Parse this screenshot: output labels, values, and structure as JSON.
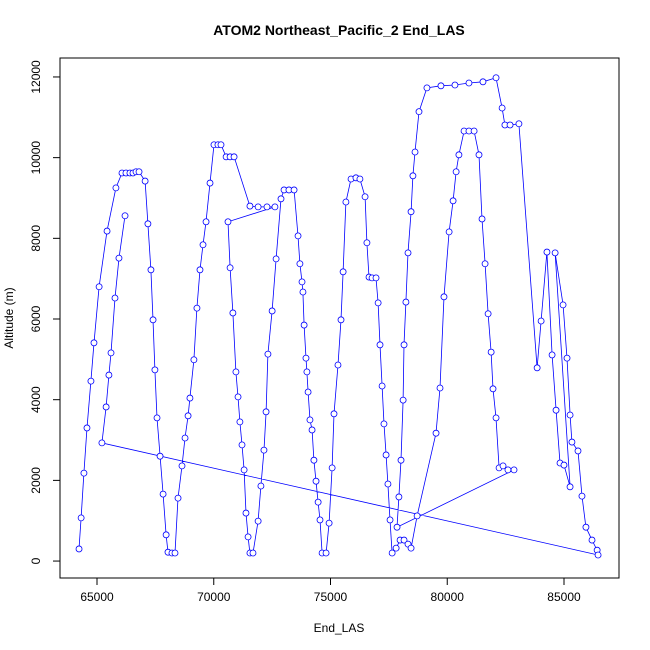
{
  "chart_data": {
    "type": "line",
    "markers": true,
    "title": "ATOM2 Northeast_Pacific_2 End_LAS",
    "x_label": "End_LAS",
    "y_label": "Altitude (m)",
    "color": "#0000ff",
    "xlim": [
      63415,
      87356
    ],
    "ylim": [
      -420,
      12470
    ],
    "xticks": [
      65000,
      70000,
      75000,
      80000,
      85000
    ],
    "yticks": [
      0,
      2000,
      4000,
      6000,
      8000,
      10000,
      12000
    ],
    "x": [
      64230,
      64320,
      64440,
      64570,
      64740,
      64870,
      65090,
      65430,
      65810,
      66070,
      66240,
      66410,
      66540,
      66670,
      66800,
      67060,
      67180,
      67310,
      67400,
      67480,
      67570,
      67700,
      67830,
      67960,
      68040,
      68210,
      68340,
      68470,
      68640,
      68770,
      68900,
      68980,
      69150,
      69280,
      69410,
      69540,
      69670,
      69840,
      70010,
      70180,
      70310,
      70530,
      70700,
      70870,
      71550,
      71900,
      72280,
      72620,
      70610,
      70700,
      70820,
      70950,
      71040,
      71120,
      71210,
      71300,
      71380,
      71470,
      71550,
      71680,
      71900,
      72020,
      72150,
      72240,
      72320,
      72500,
      72670,
      72880,
      73010,
      73220,
      73440,
      73610,
      73690,
      73780,
      73820,
      73870,
      73950,
      73990,
      74040,
      74120,
      74210,
      74290,
      74380,
      74470,
      74550,
      74640,
      74810,
      74940,
      75070,
      75150,
      75320,
      75450,
      75540,
      75660,
      75880,
      76090,
      76260,
      76480,
      76560,
      76650,
      76780,
      76950,
      77040,
      77120,
      77210,
      77290,
      77380,
      77460,
      77550,
      77640,
      77810,
      77980,
      78150,
      78320,
      78450,
      78710,
      79520,
      79690,
      79860,
      80080,
      80250,
      80380,
      80500,
      80720,
      80930,
      81150,
      81360,
      81490,
      81620,
      81750,
      81880,
      81960,
      82090,
      82220,
      82390,
      82600,
      82860,
      77850,
      77930,
      78020,
      78110,
      78150,
      78230,
      78320,
      78450,
      78530,
      78620,
      78790,
      79130,
      79730,
      80330,
      80930,
      81530,
      82090,
      82350,
      82470,
      82690,
      83070,
      83850,
      84020,
      84270,
      84490,
      84660,
      84830,
      85000,
      85260,
      84620,
      84960,
      85130,
      85260,
      85340,
      85600,
      85770,
      85940,
      86200,
      86420,
      86460,
      65210,
      65390,
      65510,
      65600,
      65770,
      65940,
      66200
    ],
    "values": [
      300,
      1070,
      2180,
      3300,
      4460,
      5410,
      6800,
      8180,
      9250,
      9620,
      9620,
      9620,
      9620,
      9650,
      9650,
      9420,
      8360,
      7220,
      5980,
      4740,
      3550,
      2600,
      1660,
      650,
      220,
      200,
      200,
      1560,
      2360,
      3050,
      3600,
      4040,
      4990,
      6270,
      7220,
      7840,
      8410,
      9370,
      10320,
      10320,
      10320,
      10020,
      10020,
      10020,
      8800,
      8780,
      8780,
      8780,
      8410,
      7270,
      6150,
      4690,
      4070,
      3450,
      2880,
      2260,
      1190,
      600,
      200,
      200,
      990,
      1860,
      2750,
      3700,
      5130,
      6200,
      7490,
      8980,
      9200,
      9200,
      9200,
      8060,
      7370,
      6920,
      6670,
      5850,
      5030,
      4690,
      4190,
      3500,
      3250,
      2500,
      1980,
      1460,
      1020,
      200,
      200,
      940,
      2310,
      3650,
      4860,
      5980,
      7170,
      8900,
      9470,
      9500,
      9470,
      9030,
      7890,
      7040,
      7020,
      7020,
      6400,
      5360,
      4340,
      3400,
      2630,
      1910,
      1020,
      200,
      320,
      520,
      520,
      420,
      320,
      1120,
      3170,
      4290,
      6550,
      8160,
      8930,
      9650,
      10070,
      10660,
      10660,
      10660,
      10070,
      8480,
      7370,
      6130,
      5180,
      4270,
      3550,
      2310,
      2360,
      2260,
      2260,
      840,
      1590,
      2500,
      3990,
      5360,
      6420,
      7640,
      8660,
      9550,
      10140,
      11140,
      11730,
      11780,
      11800,
      11850,
      11880,
      11980,
      11230,
      10810,
      10810,
      10840,
      4790,
      5950,
      7660,
      5110,
      3740,
      2430,
      2380,
      1840,
      7640,
      6350,
      5030,
      3620,
      2950,
      2730,
      1610,
      840,
      520,
      270,
      150,
      2930,
      3820,
      4610,
      5160,
      6520,
      7510,
      8560
    ]
  }
}
